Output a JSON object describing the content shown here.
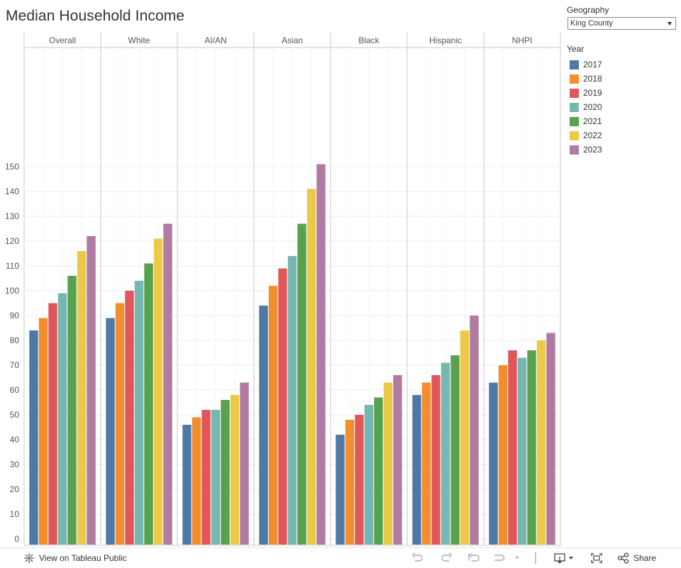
{
  "title": "Median Household Income",
  "geography": {
    "label": "Geography",
    "selected": "King County"
  },
  "legend_title": "Year",
  "footer": {
    "view_label": "View on Tableau Public",
    "share_label": "Share"
  },
  "colors": [
    "#4e79a7",
    "#f28e2b",
    "#e15759",
    "#76b7b2",
    "#59a14f",
    "#edc948",
    "#b07aa1"
  ],
  "chart_data": {
    "type": "bar",
    "title": "Median Household Income",
    "categories": [
      "Overall",
      "White",
      "AI/AN",
      "Asian",
      "Black",
      "Hispanic",
      "NHPI"
    ],
    "series": [
      {
        "name": "2017",
        "values": [
          84,
          89,
          46,
          94,
          42,
          58,
          63
        ]
      },
      {
        "name": "2018",
        "values": [
          89,
          95,
          49,
          102,
          48,
          63,
          70
        ]
      },
      {
        "name": "2019",
        "values": [
          95,
          100,
          52,
          109,
          50,
          66,
          76
        ]
      },
      {
        "name": "2020",
        "values": [
          99,
          104,
          52,
          114,
          54,
          71,
          73
        ]
      },
      {
        "name": "2021",
        "values": [
          106,
          111,
          56,
          127,
          57,
          74,
          76
        ]
      },
      {
        "name": "2022",
        "values": [
          116,
          121,
          58,
          141,
          63,
          84,
          80
        ]
      },
      {
        "name": "2023",
        "values": [
          122,
          127,
          63,
          151,
          66,
          90,
          83
        ]
      }
    ],
    "ylim": [
      0,
      160
    ],
    "yticks": [
      0,
      10,
      20,
      30,
      40,
      50,
      60,
      70,
      80,
      90,
      100,
      110,
      120,
      130,
      140,
      150
    ],
    "grid": true,
    "legend_position": "right"
  }
}
